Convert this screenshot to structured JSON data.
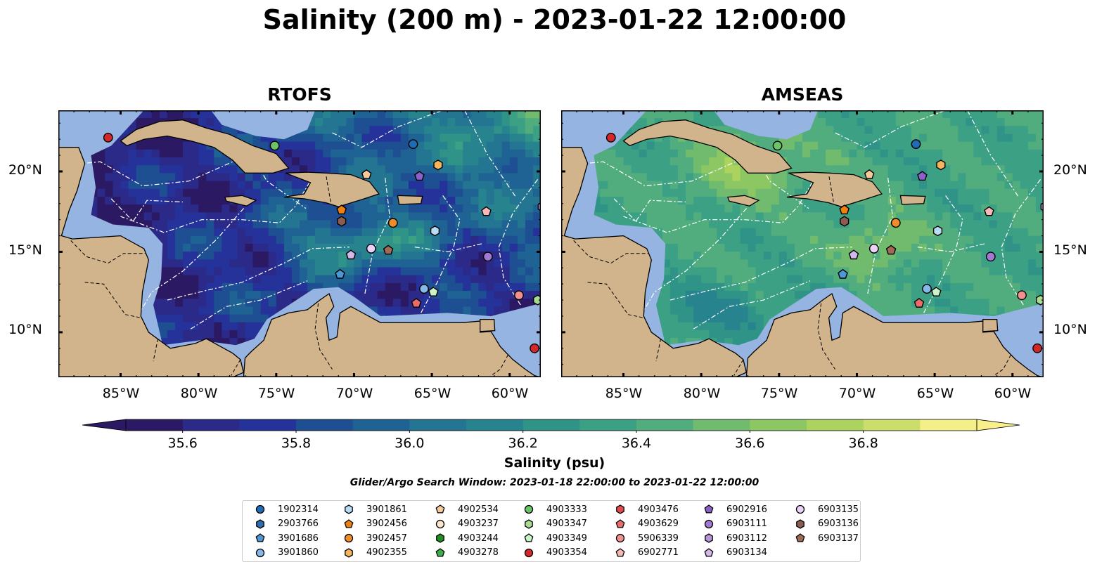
{
  "title": "Salinity (200 m) - 2023-01-22 12:00:00",
  "panels": [
    {
      "title": "RTOFS"
    },
    {
      "title": "AMSEAS"
    }
  ],
  "axes": {
    "lon_ticks": [
      "85°W",
      "80°W",
      "75°W",
      "70°W",
      "65°W",
      "60°W"
    ],
    "lat_ticks": [
      "20°N",
      "15°N",
      "10°N"
    ],
    "lon_range": [
      -89,
      -58
    ],
    "lat_range": [
      7.2,
      23.8
    ]
  },
  "colorbar": {
    "label": "Salinity (psu)",
    "ticks": [
      "35.6",
      "35.8",
      "36.0",
      "36.2",
      "36.4",
      "36.6",
      "36.8"
    ],
    "levels": [
      35.5,
      35.6,
      35.7,
      35.8,
      35.9,
      36.0,
      36.1,
      36.2,
      36.3,
      36.4,
      36.5,
      36.6,
      36.7,
      36.8,
      36.9
    ],
    "colors": [
      "#2b1a63",
      "#2b2a88",
      "#24329a",
      "#1d4f92",
      "#1e6393",
      "#237591",
      "#27848f",
      "#309388",
      "#3ca184",
      "#52ad7e",
      "#70bb6e",
      "#8dc763",
      "#acd35e",
      "#cbde6b",
      "#f4ef87"
    ],
    "extend_min_color": "#2b1a63",
    "extend_max_color": "#f9f08a"
  },
  "search_window": "Glider/Argo Search Window: 2023-01-18 22:00:00 to 2023-01-22 12:00:00",
  "colors": {
    "land": "#d2b48c",
    "shallow_water": "#95b4e1"
  },
  "floats": [
    {
      "id": "1902314",
      "marker": "circle",
      "color": "#1f6bb5",
      "lon": -66.2,
      "lat": 21.7
    },
    {
      "id": "2903766",
      "marker": "hexagon",
      "color": "#2d6db0",
      "lon": null,
      "lat": null
    },
    {
      "id": "3901686",
      "marker": "pentagon",
      "color": "#4d97d6",
      "lon": -70.9,
      "lat": 13.6
    },
    {
      "id": "3901860",
      "marker": "circle",
      "color": "#86b9e6",
      "lon": -65.5,
      "lat": 12.7
    },
    {
      "id": "3901861",
      "marker": "hexagon",
      "color": "#b8dcf5",
      "lon": -64.8,
      "lat": 16.3
    },
    {
      "id": "3902456",
      "marker": "pentagon",
      "color": "#f07f12",
      "lon": -70.8,
      "lat": 17.6
    },
    {
      "id": "3902457",
      "marker": "circle",
      "color": "#f08c2a",
      "lon": -67.5,
      "lat": 16.8
    },
    {
      "id": "4902355",
      "marker": "hexagon",
      "color": "#f6b45e",
      "lon": -64.6,
      "lat": 20.4
    },
    {
      "id": "4902534",
      "marker": "pentagon",
      "color": "#f8c99a",
      "lon": -69.2,
      "lat": 19.8
    },
    {
      "id": "4903237",
      "marker": "circle",
      "color": "#fde5cc",
      "lon": null,
      "lat": null
    },
    {
      "id": "4903244",
      "marker": "hexagon",
      "color": "#1f8f1f",
      "lon": null,
      "lat": null
    },
    {
      "id": "4903278",
      "marker": "pentagon",
      "color": "#3cb04a",
      "lon": null,
      "lat": null
    },
    {
      "id": "4903333",
      "marker": "circle",
      "color": "#6cc467",
      "lon": -75.1,
      "lat": 21.6
    },
    {
      "id": "4903347",
      "marker": "hexagon",
      "color": "#a6dd93",
      "lon": -58.2,
      "lat": 12.0
    },
    {
      "id": "4903349",
      "marker": "pentagon",
      "color": "#ccf2c8",
      "lon": -64.9,
      "lat": 12.5
    },
    {
      "id": "4903354",
      "marker": "circle",
      "color": "#d62728",
      "lon": -85.8,
      "lat": 22.1
    },
    {
      "id": "4903476",
      "marker": "hexagon",
      "color": "#e14b4b",
      "lon": null,
      "lat": null
    },
    {
      "id": "4903629",
      "marker": "pentagon",
      "color": "#ec6b6b",
      "lon": -66.0,
      "lat": 11.8
    },
    {
      "id": "5906339",
      "marker": "circle",
      "color": "#f28f8f",
      "lon": -59.4,
      "lat": 12.3
    },
    {
      "id": "6902771",
      "marker": "pentagon",
      "color": "#f8b8b8",
      "lon": -61.5,
      "lat": 17.5
    },
    {
      "id": "6902916",
      "marker": "pentagon",
      "color": "#8b60c7",
      "lon": -65.8,
      "lat": 19.7
    },
    {
      "id": "6903111",
      "marker": "circle",
      "color": "#a27ad1",
      "lon": -61.4,
      "lat": 14.7
    },
    {
      "id": "6903112",
      "marker": "hexagon",
      "color": "#b893dc",
      "lon": -57.9,
      "lat": 17.8
    },
    {
      "id": "6903134",
      "marker": "pentagon",
      "color": "#d3b8ec",
      "lon": -70.2,
      "lat": 14.8
    },
    {
      "id": "6903135",
      "marker": "circle",
      "color": "#ecd2f6",
      "lon": -68.9,
      "lat": 15.2
    },
    {
      "id": "6903136",
      "marker": "hexagon",
      "color": "#8c5c4f",
      "lon": -70.8,
      "lat": 16.9
    },
    {
      "id": "6903137",
      "marker": "pentagon",
      "color": "#a06a57",
      "lon": -67.8,
      "lat": 15.1
    },
    {
      "id": "extra",
      "marker": "circle",
      "color": "#d62728",
      "lon": -58.4,
      "lat": 9.0
    }
  ]
}
